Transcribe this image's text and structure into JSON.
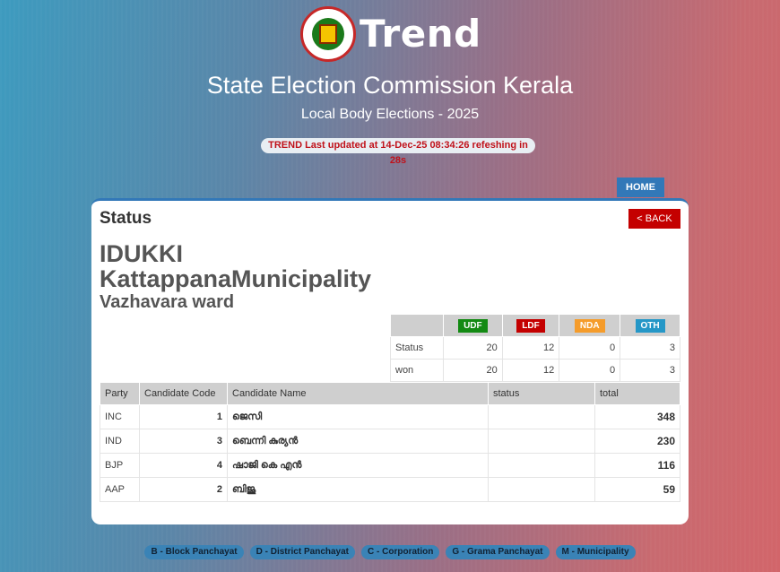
{
  "header": {
    "logo_text": "Trend",
    "title": "State Election Commission Kerala",
    "subtitle": "Local Body Elections - 2025",
    "update_status": "TREND Last updated at 14-Dec-25 08:34:26 refeshing in 28s"
  },
  "nav": {
    "home_label": "HOME"
  },
  "card": {
    "title": "Status",
    "back_label": "< BACK",
    "district": "IDUKKI",
    "local_body": "KattappanaMunicipality",
    "ward": "Vazhavara ward"
  },
  "summary": {
    "fronts": [
      {
        "label": "UDF",
        "color": "#138a13"
      },
      {
        "label": "LDF",
        "color": "#c40000"
      },
      {
        "label": "NDA",
        "color": "#f59c2b"
      },
      {
        "label": "OTH",
        "color": "#2597c7"
      }
    ],
    "rows": [
      {
        "label": "Status",
        "values": [
          "20",
          "12",
          "0",
          "3"
        ]
      },
      {
        "label": "won",
        "values": [
          "20",
          "12",
          "0",
          "3"
        ]
      }
    ]
  },
  "results": {
    "headers": [
      "Party",
      "Candidate Code",
      "Candidate Name",
      "status",
      "total"
    ],
    "rows": [
      {
        "party": "INC",
        "code": "1",
        "name": "ജെസി",
        "status": "",
        "total": "348"
      },
      {
        "party": "IND",
        "code": "3",
        "name": "ബെന്നി കുര്യൻ",
        "status": "",
        "total": "230"
      },
      {
        "party": "BJP",
        "code": "4",
        "name": "ഷാജി കെ എൻ",
        "status": "",
        "total": "116"
      },
      {
        "party": "AAP",
        "code": "2",
        "name": "ബിജു",
        "status": "",
        "total": "59"
      }
    ]
  },
  "legend": [
    "B - Block Panchayat",
    "D - District Panchayat",
    "C - Corporation",
    "G - Grama Panchayat",
    "M - Municipality"
  ]
}
